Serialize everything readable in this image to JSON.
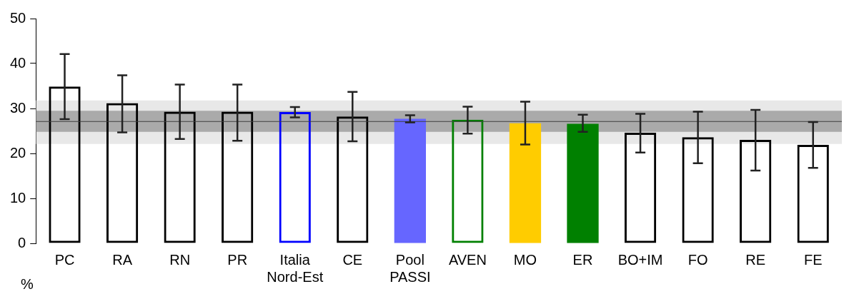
{
  "chart_data": {
    "type": "bar",
    "ylabel": "%",
    "categories": [
      "PC",
      "RA",
      "RN",
      "PR",
      "Italia Nord-Est",
      "CE",
      "Pool PASSI",
      "AVEN",
      "MO",
      "ER",
      "BO+IM",
      "FO",
      "RE",
      "FE"
    ],
    "series": [
      {
        "colors": [
          "#000000",
          "#000000",
          "#000000",
          "#000000",
          "#0000ff",
          "#000000",
          null,
          "#008000",
          null,
          null,
          "#000000",
          "#000000",
          "#000000",
          "#000000"
        ],
        "values": [
          34.9,
          31.2,
          29.3,
          29.3,
          29.2,
          28.2,
          null,
          27.5,
          null,
          null,
          24.6,
          23.6,
          23.0,
          21.9
        ],
        "errors": [
          [
            27.6,
            42.1
          ],
          [
            24.7,
            37.4
          ],
          [
            23.2,
            35.3
          ],
          [
            22.8,
            35.3
          ],
          [
            28.0,
            30.3
          ],
          [
            22.7,
            33.7
          ],
          null,
          [
            24.4,
            30.4
          ],
          null,
          null,
          [
            20.2,
            28.8
          ],
          [
            17.8,
            29.3
          ],
          [
            16.2,
            29.7
          ],
          [
            16.8,
            27.0
          ]
        ]
      },
      {
        "colors": [
          null,
          null,
          null,
          null,
          null,
          null,
          "#6666ff",
          null,
          "#ffcc00",
          "#008000",
          null,
          null,
          null,
          null
        ],
        "values": [
          null,
          null,
          null,
          null,
          null,
          null,
          27.7,
          null,
          26.7,
          26.6,
          null,
          null,
          null,
          null
        ],
        "errors": [
          null,
          null,
          null,
          null,
          null,
          null,
          [
            26.9,
            28.5
          ],
          null,
          [
            22.0,
            31.5
          ],
          [
            24.8,
            28.6
          ],
          null,
          null,
          null,
          null
        ]
      }
    ],
    "ylim": [
      0,
      50
    ],
    "yticks": [
      0,
      10,
      20,
      30,
      40,
      50
    ],
    "grid": false,
    "legend": false,
    "bands": [
      {
        "axis": "y",
        "from": 22.1,
        "to": 31.8,
        "color": "#d9d9d9"
      },
      {
        "axis": "y",
        "from": 24.8,
        "to": 29.5,
        "color": "#808080"
      }
    ],
    "ref_lines": [
      {
        "axis": "y",
        "value": 27.1,
        "color": "#404040"
      }
    ]
  }
}
